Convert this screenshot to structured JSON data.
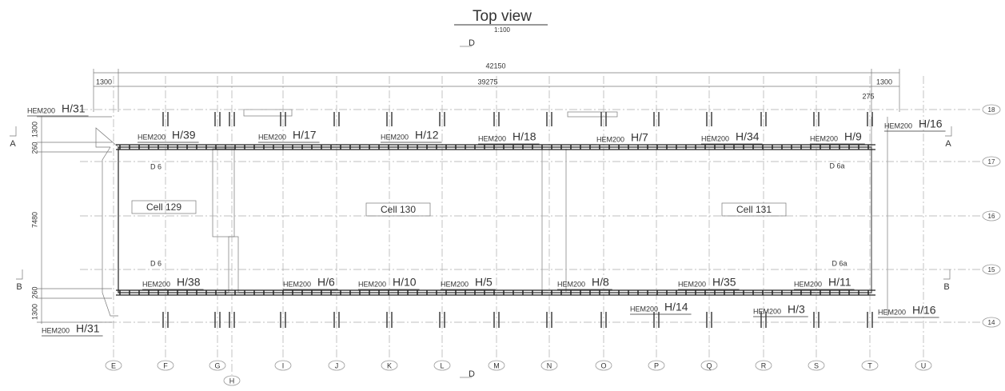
{
  "title": "Top view",
  "scale": "1:100",
  "section_d": [
    "D",
    "D"
  ],
  "dimensions": {
    "overall": "42150",
    "left_offset": "1300",
    "span": "39275",
    "right_offset": "1300",
    "right_small": "275",
    "vertical": [
      "1300",
      "260",
      "7480",
      "260",
      "1300"
    ]
  },
  "section_a": [
    "A",
    "A"
  ],
  "section_b": [
    "B",
    "B"
  ],
  "grid_columns": [
    "E",
    "F",
    "G",
    "H",
    "I",
    "J",
    "K",
    "L",
    "M",
    "N",
    "O",
    "P",
    "Q",
    "R",
    "S",
    "T",
    "U"
  ],
  "grid_rows": [
    "18",
    "17",
    "16",
    "15",
    "14"
  ],
  "cells": [
    "Cell 129",
    "Cell 130",
    "Cell 131"
  ],
  "details": [
    "D 6",
    "D 6a",
    "D 6",
    "D 6a"
  ],
  "beams": [
    {
      "profile": "HEM200",
      "mark": "H/31"
    },
    {
      "profile": "HEM200",
      "mark": "H/39"
    },
    {
      "profile": "HEM200",
      "mark": "H/17"
    },
    {
      "profile": "HEM200",
      "mark": "H/12"
    },
    {
      "profile": "HEM200",
      "mark": "H/18"
    },
    {
      "profile": "HEM200",
      "mark": "H/7"
    },
    {
      "profile": "HEM200",
      "mark": "H/34"
    },
    {
      "profile": "HEM200",
      "mark": "H/9"
    },
    {
      "profile": "HEM200",
      "mark": "H/16"
    },
    {
      "profile": "HEM200",
      "mark": "H/38"
    },
    {
      "profile": "HEM200",
      "mark": "H/6"
    },
    {
      "profile": "HEM200",
      "mark": "H/10"
    },
    {
      "profile": "HEM200",
      "mark": "H/5"
    },
    {
      "profile": "HEM200",
      "mark": "H/8"
    },
    {
      "profile": "HEM200",
      "mark": "H/35"
    },
    {
      "profile": "HEM200",
      "mark": "H/11"
    },
    {
      "profile": "HEM200",
      "mark": "H/14"
    },
    {
      "profile": "HEM200",
      "mark": "H/3"
    },
    {
      "profile": "HEM200",
      "mark": "H/16"
    },
    {
      "profile": "HEM200",
      "mark": "H/31"
    }
  ]
}
